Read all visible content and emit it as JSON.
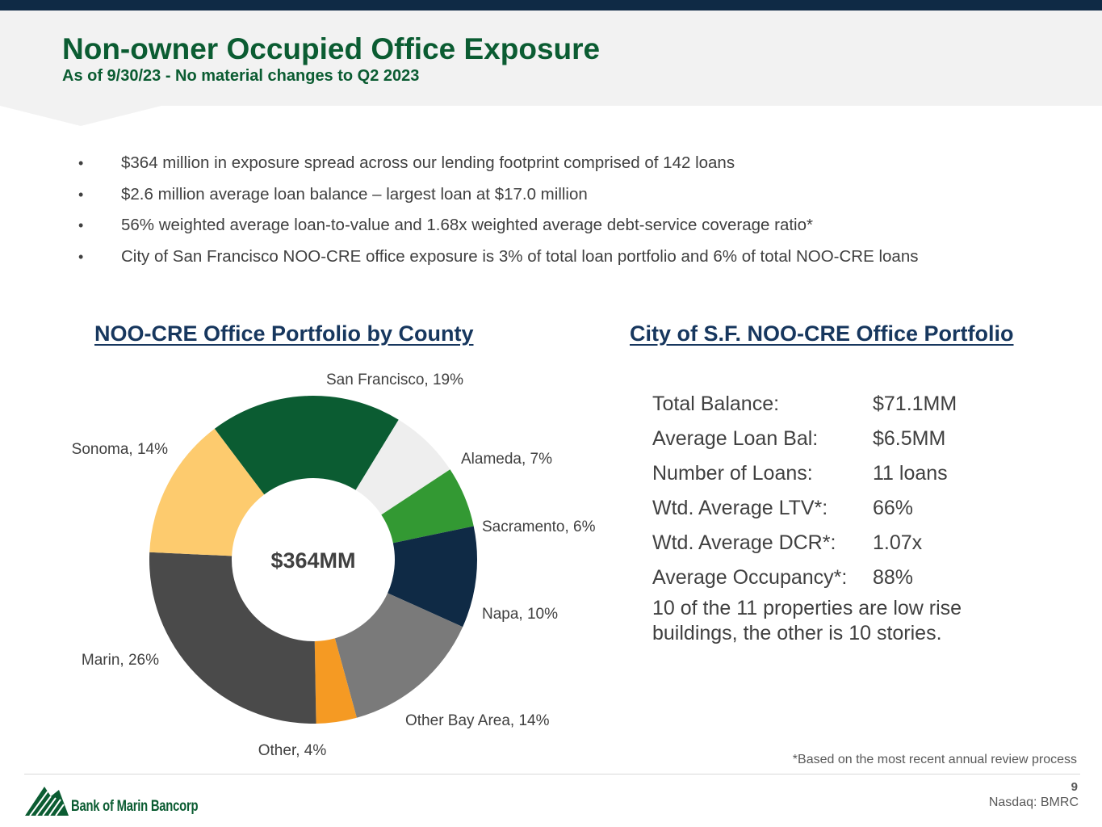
{
  "header": {
    "title": "Non-owner Occupied Office Exposure",
    "subtitle": "As of 9/30/23 - No material changes to Q2 2023"
  },
  "bullets": [
    "$364 million in exposure spread across our lending footprint comprised of 142 loans",
    "$2.6 million average loan balance – largest loan at $17.0 million",
    "56% weighted average loan-to-value and 1.68x weighted average debt-service coverage ratio*",
    "City of San Francisco NOO-CRE office exposure is 3% of total loan portfolio and 6% of total NOO-CRE loans"
  ],
  "bullet_marker": "•",
  "chart_data": {
    "type": "pie",
    "title": "NOO-CRE Office Portfolio by County",
    "center_label": "$364MM",
    "slices": [
      {
        "label": "San Francisco, 19%",
        "value": 19,
        "color": "#0b5c32"
      },
      {
        "label": "Alameda, 7%",
        "value": 7,
        "color": "#eeeeee"
      },
      {
        "label": "Sacramento, 6%",
        "value": 6,
        "color": "#339933"
      },
      {
        "label": "Napa, 10%",
        "value": 10,
        "color": "#0f2a45"
      },
      {
        "label": "Other Bay Area, 14%",
        "value": 14,
        "color": "#7a7a7a"
      },
      {
        "label": "Other, 4%",
        "value": 4,
        "color": "#f59a23"
      },
      {
        "label": "Marin, 26%",
        "value": 26,
        "color": "#4a4a4a"
      },
      {
        "label": "Sonoma, 14%",
        "value": 14,
        "color": "#fdcb6e"
      }
    ]
  },
  "sf_portfolio": {
    "title": "City of S.F. NOO-CRE Office Portfolio",
    "rows": [
      {
        "label": "Total Balance:",
        "value": "$71.1MM"
      },
      {
        "label": "Average Loan Bal:",
        "value": "$6.5MM"
      },
      {
        "label": "Number of Loans:",
        "value": "11 loans"
      },
      {
        "label": "Wtd. Average LTV*:",
        "value": "66%"
      },
      {
        "label": "Wtd. Average DCR*:",
        "value": "1.07x"
      },
      {
        "label": "Average Occupancy*:",
        "value": "88%"
      }
    ],
    "note": "10 of the 11 properties are low rise buildings, the other is 10 stories."
  },
  "footer": {
    "footnote": "*Based on the most recent annual review process",
    "logo_text": "Bank of Marin Bancorp",
    "page_number": "9",
    "ticker": "Nasdaq: BMRC"
  },
  "colors": {
    "title_green": "#0b5c32",
    "heading_navy": "#17375e",
    "top_bar": "#0f2a45"
  }
}
